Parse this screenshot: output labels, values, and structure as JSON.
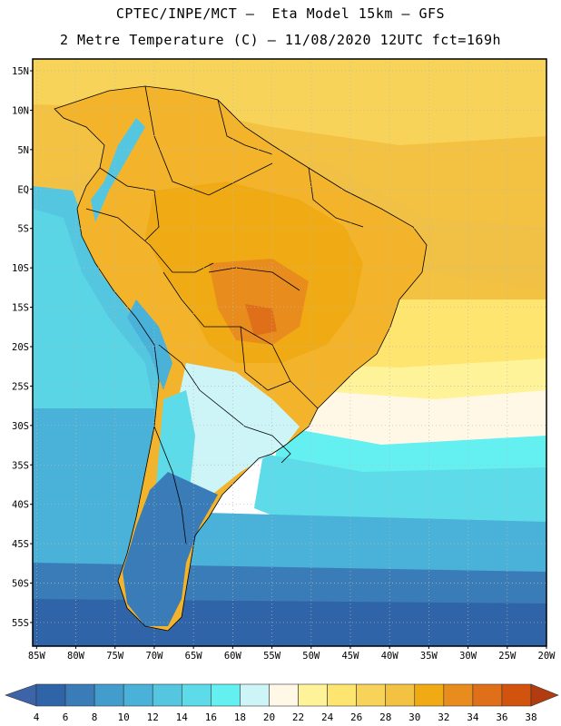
{
  "header": {
    "title_line1": "CPTEC/INPE/MCT –  Eta Model 15km – GFS",
    "title_line2": "2 Metre Temperature (C) – 11/08/2020 12UTC fct=169h"
  },
  "map": {
    "lat_labels": [
      "15N",
      "10N",
      "5N",
      "EQ",
      "5S",
      "10S",
      "15S",
      "20S",
      "25S",
      "30S",
      "35S",
      "40S",
      "45S",
      "50S",
      "55S"
    ],
    "lon_labels": [
      "85W",
      "80W",
      "75W",
      "70W",
      "65W",
      "60W",
      "55W",
      "50W",
      "45W",
      "40W",
      "35W",
      "30W",
      "25W",
      "20W"
    ],
    "lat_values": [
      15,
      10,
      5,
      0,
      -5,
      -10,
      -15,
      -20,
      -25,
      -30,
      -35,
      -40,
      -45,
      -50,
      -55
    ],
    "lon_values": [
      -85,
      -80,
      -75,
      -70,
      -65,
      -60,
      -55,
      -50,
      -45,
      -40,
      -35,
      -30,
      -25,
      -20
    ],
    "lat_range": [
      -58,
      16.5
    ],
    "lon_range": [
      -85.5,
      -20
    ]
  },
  "colorbar": {
    "ticks": [
      "4",
      "6",
      "8",
      "10",
      "12",
      "14",
      "16",
      "18",
      "20",
      "22",
      "24",
      "26",
      "28",
      "30",
      "32",
      "34",
      "36",
      "38"
    ],
    "under_color": "#3d64a8",
    "over_color": "#b23c10",
    "colors": [
      "#2f64a8",
      "#3a7cb8",
      "#429dcc",
      "#4ab1d8",
      "#55c6e0",
      "#5ddbe8",
      "#64f0f0",
      "#cdf4f6",
      "#fff8e6",
      "#fff39a",
      "#fde56f",
      "#f8d35a",
      "#f3c242",
      "#f0aa14",
      "#e98c1e",
      "#e06f1a",
      "#d2530e"
    ]
  }
}
